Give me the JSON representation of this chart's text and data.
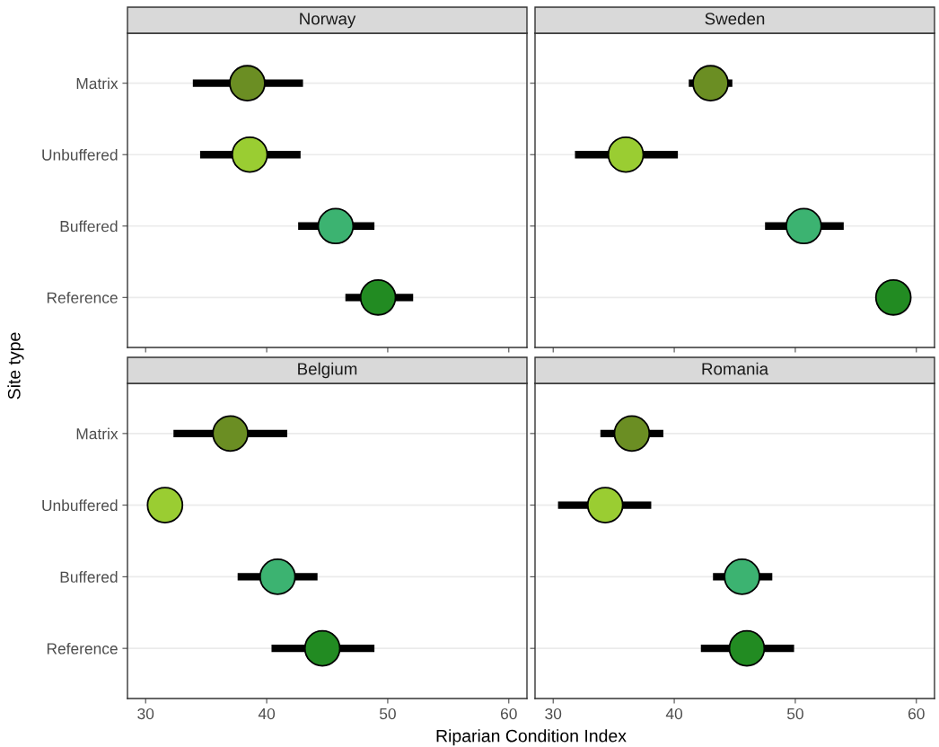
{
  "chart_data": [
    {
      "type": "scatter",
      "title": "Norway",
      "ylabel": "Site type",
      "orientation": "horizontal",
      "categories": [
        "Matrix",
        "Unbuffered",
        "Buffered",
        "Reference"
      ],
      "values": [
        38.4,
        38.6,
        45.7,
        49.2
      ],
      "errors": [
        [
          33.9,
          43.0
        ],
        [
          34.5,
          42.8
        ],
        [
          42.6,
          48.9
        ],
        [
          46.5,
          52.1
        ]
      ],
      "colors": [
        "#6b8e23",
        "#9acd32",
        "#3cb371",
        "#228b22"
      ],
      "xlim": [
        28.5,
        61.5
      ],
      "xticks": [
        30,
        40,
        50,
        60
      ],
      "grid": "y",
      "marker": "circle",
      "tick_labels": "y"
    },
    {
      "type": "scatter",
      "title": "Sweden",
      "orientation": "horizontal",
      "categories": [
        null,
        null,
        null,
        null
      ],
      "values": [
        43.0,
        36.0,
        50.7,
        58.1
      ],
      "errors": [
        [
          41.2,
          44.8
        ],
        [
          31.8,
          40.3
        ],
        [
          47.5,
          54.0
        ],
        null
      ],
      "colors": [
        "#6b8e23",
        "#9acd32",
        "#3cb371",
        "#228b22"
      ],
      "xlim": [
        28.5,
        61.5
      ],
      "xticks": [
        30,
        40,
        50,
        60
      ],
      "grid": "y",
      "marker": "circle",
      "tick_labels": false
    },
    {
      "type": "scatter",
      "title": "Belgium",
      "xlabel": "Riparian Condition Index",
      "orientation": "horizontal",
      "categories": [
        "Matrix",
        "Unbuffered",
        "Buffered",
        "Reference"
      ],
      "values": [
        37.0,
        31.6,
        40.9,
        44.6
      ],
      "errors": [
        [
          32.3,
          41.7
        ],
        null,
        [
          37.6,
          44.2
        ],
        [
          40.4,
          48.9
        ]
      ],
      "colors": [
        "#6b8e23",
        "#9acd32",
        "#3cb371",
        "#228b22"
      ],
      "xlim": [
        28.5,
        61.5
      ],
      "xticks": [
        30,
        40,
        50,
        60
      ],
      "grid": "y",
      "marker": "circle"
    },
    {
      "type": "scatter",
      "title": "Romania",
      "orientation": "horizontal",
      "categories": [
        null,
        null,
        null,
        null
      ],
      "values": [
        36.5,
        34.3,
        45.6,
        46.0
      ],
      "errors": [
        [
          33.9,
          39.1
        ],
        [
          30.4,
          38.1
        ],
        [
          43.2,
          48.1
        ],
        [
          42.2,
          49.9
        ]
      ],
      "colors": [
        "#6b8e23",
        "#9acd32",
        "#3cb371",
        "#228b22"
      ],
      "xlim": [
        28.5,
        61.5
      ],
      "xticks": [
        30,
        40,
        50,
        60
      ],
      "grid": "y",
      "marker": "circle",
      "tick_labels": "x"
    }
  ]
}
